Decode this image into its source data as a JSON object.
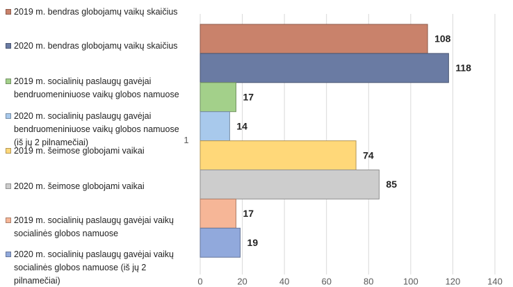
{
  "chart_data": {
    "type": "barh",
    "categories": [
      "1"
    ],
    "series": [
      {
        "name": "2019 m. bendras globojamų vaikų skaičius",
        "color": "#c9826b",
        "values": [
          108
        ]
      },
      {
        "name": "2020 m. bendras globojamų vaikų skaičius",
        "color": "#6a7ba3",
        "values": [
          118
        ]
      },
      {
        "name": "2019 m. socialinių paslaugų gavėjai bendruomeniniuose vaikų globos namuose",
        "color": "#a3d08a",
        "values": [
          17
        ]
      },
      {
        "name": "2020 m. socialinių paslaugų gavėjai bendruomeniniuose vaikų globos namuose  (iš jų 2 pilnamečiai)",
        "color": "#a8c9ec",
        "values": [
          14
        ]
      },
      {
        "name": "2019 m. šeimose globojami vaikai",
        "color": "#ffd879",
        "values": [
          74
        ]
      },
      {
        "name": "2020 m. šeimose globojami vaikai",
        "color": "#cdcdcd",
        "values": [
          85
        ]
      },
      {
        "name": "2019 m. socialinių paslaugų gavėjai vaikų socialinės globos namuose",
        "color": "#f6b697",
        "values": [
          17
        ]
      },
      {
        "name": "2020 m. socialinių paslaugų gavėjai vaikų socialinės globos namuose  (iš jų 2 pilnamečiai)",
        "color": "#91a9dc",
        "values": [
          19
        ]
      }
    ],
    "xlim": [
      0,
      140
    ],
    "xticks": [
      0,
      20,
      40,
      60,
      80,
      100,
      120,
      140
    ],
    "grid": true,
    "legend": "left"
  }
}
